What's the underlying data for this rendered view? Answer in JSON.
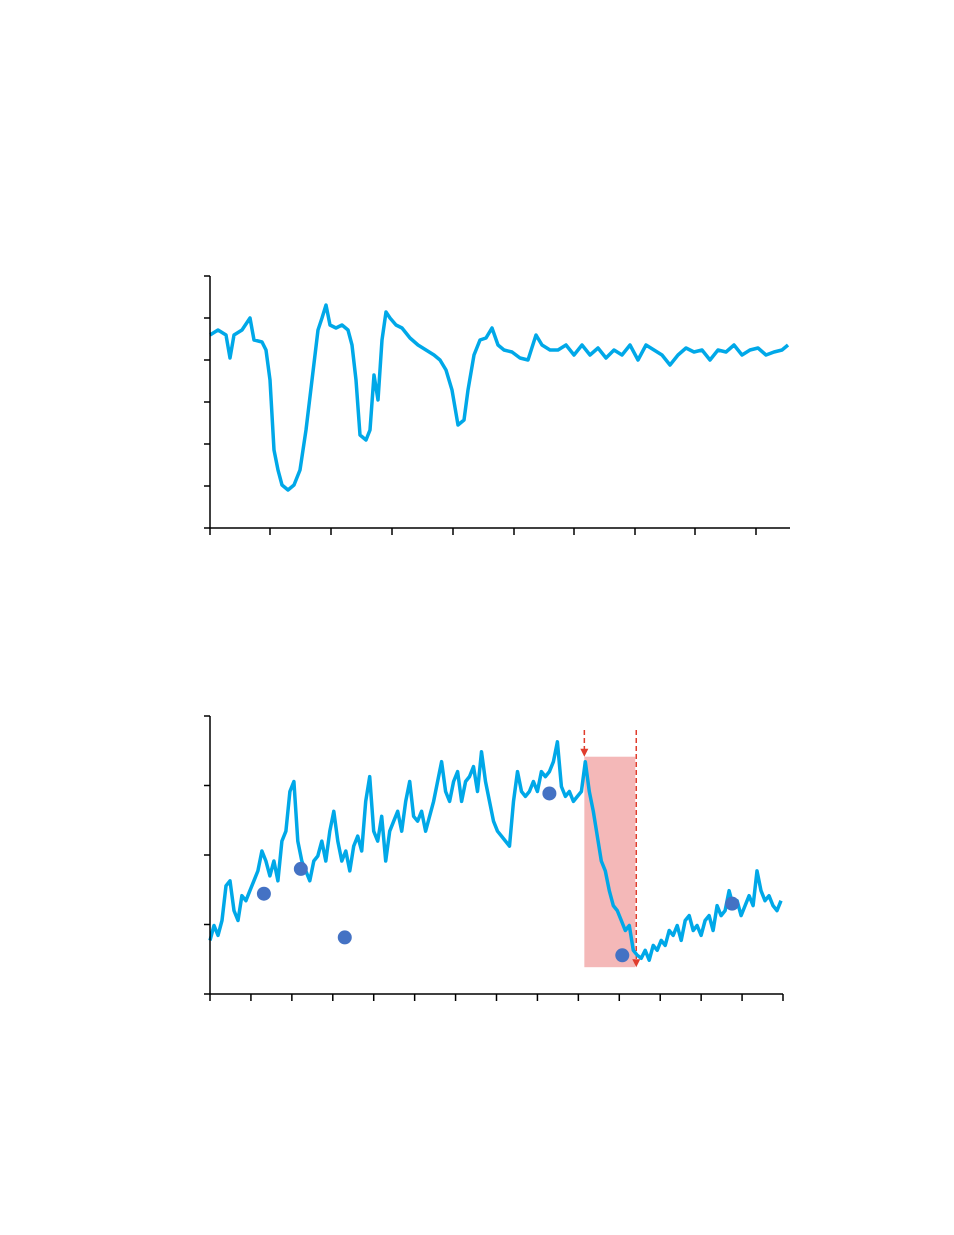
{
  "chart_data": [
    {
      "type": "line",
      "color": "#00a8e8",
      "xlim": [
        0,
        580
      ],
      "xticks": [
        0,
        60,
        121,
        182,
        243,
        304,
        364,
        425,
        485,
        546
      ],
      "ylim": [
        0,
        252
      ],
      "yticks": [
        0,
        42,
        84,
        126,
        168,
        210,
        252
      ],
      "grid": false,
      "x": [
        0,
        8,
        16,
        20,
        24,
        32,
        40,
        44,
        52,
        56,
        60,
        64,
        68,
        72,
        78,
        84,
        90,
        96,
        102,
        108,
        112,
        116,
        120,
        126,
        132,
        138,
        142,
        146,
        150,
        156,
        160,
        164,
        168,
        172,
        176,
        180,
        186,
        192,
        200,
        208,
        216,
        224,
        230,
        236,
        242,
        248,
        254,
        258,
        264,
        270,
        276,
        282,
        288,
        294,
        302,
        310,
        318,
        326,
        332,
        340,
        348,
        356,
        364,
        372,
        380,
        388,
        396,
        404,
        412,
        420,
        428,
        436,
        444,
        452,
        460,
        468,
        476,
        484,
        492,
        500,
        508,
        516,
        524,
        532,
        540,
        548,
        556,
        564,
        572,
        578
      ],
      "values": [
        193,
        198,
        193,
        170,
        193,
        198,
        210,
        188,
        186,
        178,
        148,
        78,
        58,
        43,
        38,
        43,
        58,
        98,
        148,
        198,
        210,
        223,
        203,
        200,
        203,
        198,
        183,
        148,
        93,
        88,
        98,
        153,
        128,
        188,
        216,
        210,
        203,
        200,
        190,
        183,
        178,
        173,
        168,
        158,
        138,
        103,
        108,
        138,
        173,
        188,
        190,
        200,
        183,
        178,
        176,
        170,
        168,
        193,
        183,
        178,
        178,
        183,
        173,
        183,
        173,
        180,
        170,
        178,
        173,
        183,
        168,
        183,
        178,
        173,
        163,
        173,
        180,
        176,
        178,
        168,
        178,
        176,
        183,
        173,
        178,
        180,
        173,
        176,
        178,
        183
      ]
    },
    {
      "type": "line",
      "color": "#00a8e8",
      "xlim": [
        0,
        143.5
      ],
      "xticks": [
        0,
        10.25,
        20.5,
        30.75,
        41,
        51.25,
        61.5,
        71.75,
        82,
        92.25,
        102.5,
        112.75,
        123,
        133.25,
        143.5
      ],
      "ylim": [
        0,
        280
      ],
      "yticks": [
        0,
        70,
        140,
        210,
        280
      ],
      "grid": false,
      "x": [
        0,
        1,
        2,
        3,
        4,
        5,
        6,
        7,
        8,
        9,
        10,
        11,
        12,
        13,
        14,
        15,
        16,
        17,
        18,
        19,
        20,
        21,
        22,
        23,
        24,
        25,
        26,
        27,
        28,
        29,
        30,
        31,
        32,
        33,
        34,
        35,
        36,
        37,
        38,
        39,
        40,
        41,
        42,
        43,
        44,
        45,
        46,
        47,
        48,
        49,
        50,
        51,
        52,
        53,
        54,
        55,
        56,
        57,
        58,
        59,
        60,
        61,
        62,
        63,
        64,
        65,
        66,
        67,
        68,
        69,
        70,
        71,
        72,
        73,
        74,
        75,
        76,
        77,
        78,
        79,
        80,
        81,
        82,
        83,
        84,
        85,
        86,
        87,
        88,
        89,
        90,
        91,
        92,
        93,
        94,
        95,
        96,
        97,
        98,
        99,
        100,
        101,
        102,
        103,
        104,
        105,
        106,
        107,
        108,
        109,
        110,
        111,
        112,
        113,
        114,
        115,
        116,
        117,
        118,
        119,
        120,
        121,
        122,
        123,
        124,
        125,
        126,
        127,
        128,
        129,
        130,
        131,
        132,
        133,
        134,
        135,
        136,
        137,
        138,
        139,
        140,
        141,
        142,
        143
      ],
      "values": [
        54,
        69,
        59,
        74,
        109,
        114,
        84,
        74,
        99,
        94,
        104,
        114,
        124,
        144,
        134,
        119,
        134,
        114,
        154,
        164,
        204,
        214,
        154,
        134,
        124,
        114,
        134,
        139,
        154,
        134,
        164,
        184,
        154,
        134,
        144,
        124,
        149,
        159,
        144,
        194,
        219,
        164,
        154,
        179,
        134,
        164,
        174,
        184,
        164,
        194,
        214,
        179,
        174,
        184,
        164,
        179,
        194,
        214,
        234,
        204,
        194,
        214,
        224,
        194,
        214,
        219,
        229,
        204,
        244,
        214,
        194,
        174,
        164,
        159,
        154,
        149,
        194,
        224,
        204,
        199,
        204,
        214,
        204,
        224,
        219,
        224,
        234,
        254,
        209,
        199,
        204,
        194,
        199,
        204,
        234,
        204,
        184,
        159,
        134,
        124,
        104,
        89,
        84,
        74,
        64,
        69,
        44,
        39,
        36,
        44,
        34,
        49,
        44,
        54,
        49,
        64,
        59,
        69,
        54,
        74,
        79,
        64,
        69,
        59,
        74,
        79,
        64,
        89,
        79,
        84,
        104,
        89,
        94,
        79,
        89,
        99,
        89,
        124,
        104,
        94,
        99,
        89,
        84,
        94
      ],
      "markers": {
        "color": "#4472c4",
        "x": [
          13.5,
          22.75,
          33.75,
          85,
          103.25,
          130.75
        ],
        "values": [
          101,
          126,
          57,
          202,
          39,
          91
        ]
      },
      "highlight": {
        "color": "#f4b8b8",
        "xlim": [
          93.75,
          106.5
        ],
        "ylim": [
          27,
          239
        ],
        "arrow_color": "#e03c2c"
      }
    }
  ]
}
